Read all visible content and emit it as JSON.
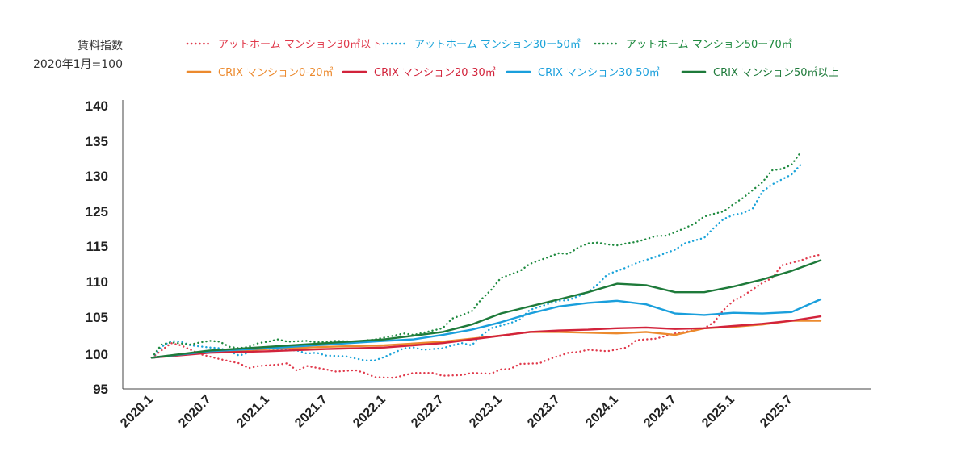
{
  "chart_data": {
    "type": "line",
    "ylabel": "賃料指数",
    "ylabel_sub": "2020年1月=100",
    "ylim": [
      95,
      140
    ],
    "yticks": [
      95,
      100,
      105,
      110,
      115,
      125,
      130,
      135,
      140
    ],
    "xticks": [
      "2020.1",
      "2020.7",
      "2021.1",
      "2021.7",
      "2022.1",
      "2022.7",
      "2023.1",
      "2023.7",
      "2024.1",
      "2024.7",
      "2025.1",
      "2025.7"
    ],
    "x_start": "2020.1",
    "n_months": 72,
    "grid": false,
    "legend_position": "top",
    "series": [
      {
        "name": "アットホーム マンション30㎡以下",
        "color": "#e0394b",
        "style": "dotted",
        "points": [
          [
            0,
            99.5
          ],
          [
            2,
            101.5
          ],
          [
            3,
            101.2
          ],
          [
            5,
            100.0
          ],
          [
            7,
            99.3
          ],
          [
            9,
            98.7
          ],
          [
            10,
            98.0
          ],
          [
            11,
            98.3
          ],
          [
            13,
            98.5
          ],
          [
            14,
            98.7
          ],
          [
            15,
            97.6
          ],
          [
            16,
            98.3
          ],
          [
            18,
            97.8
          ],
          [
            19,
            97.5
          ],
          [
            21,
            97.7
          ],
          [
            22,
            97.3
          ],
          [
            23,
            96.7
          ],
          [
            25,
            96.6
          ],
          [
            27,
            97.3
          ],
          [
            29,
            97.3
          ],
          [
            30,
            96.9
          ],
          [
            32,
            97.0
          ],
          [
            33,
            97.3
          ],
          [
            35,
            97.2
          ],
          [
            36,
            97.8
          ],
          [
            37,
            97.9
          ],
          [
            38,
            98.6
          ],
          [
            40,
            98.7
          ],
          [
            41,
            99.3
          ],
          [
            43,
            100.2
          ],
          [
            44,
            100.3
          ],
          [
            45,
            100.6
          ],
          [
            47,
            100.4
          ],
          [
            49,
            100.9
          ],
          [
            50,
            101.9
          ],
          [
            52,
            102.1
          ],
          [
            54,
            102.8
          ],
          [
            55,
            103.0
          ],
          [
            57,
            103.5
          ],
          [
            58,
            104.3
          ],
          [
            59,
            106.0
          ],
          [
            60,
            107.3
          ],
          [
            61,
            108.0
          ],
          [
            63,
            109.8
          ],
          [
            64,
            110.5
          ],
          [
            65,
            112.3
          ],
          [
            67,
            113.0
          ],
          [
            68,
            113.5
          ],
          [
            69,
            113.8
          ]
        ]
      },
      {
        "name": "アットホーム マンション30ー50㎡",
        "color": "#1aa3d9",
        "style": "dotted",
        "points": [
          [
            0,
            99.5
          ],
          [
            1,
            101.0
          ],
          [
            2,
            101.8
          ],
          [
            3,
            101.7
          ],
          [
            4,
            101.2
          ],
          [
            6,
            100.9
          ],
          [
            7,
            100.8
          ],
          [
            8,
            100.4
          ],
          [
            9,
            99.8
          ],
          [
            10,
            100.2
          ],
          [
            11,
            100.8
          ],
          [
            13,
            100.6
          ],
          [
            15,
            100.5
          ],
          [
            16,
            100.1
          ],
          [
            17,
            100.2
          ],
          [
            18,
            99.8
          ],
          [
            20,
            99.7
          ],
          [
            21,
            99.4
          ],
          [
            22,
            99.1
          ],
          [
            23,
            99.1
          ],
          [
            24,
            99.6
          ],
          [
            25,
            100.2
          ],
          [
            26,
            100.8
          ],
          [
            27,
            100.9
          ],
          [
            28,
            100.6
          ],
          [
            30,
            100.8
          ],
          [
            31,
            101.2
          ],
          [
            32,
            101.5
          ],
          [
            33,
            101.2
          ],
          [
            34,
            102.5
          ],
          [
            35,
            103.5
          ],
          [
            37,
            104.2
          ],
          [
            38,
            104.7
          ],
          [
            39,
            106.0
          ],
          [
            41,
            106.9
          ],
          [
            42,
            107.3
          ],
          [
            43,
            107.4
          ],
          [
            45,
            108.5
          ],
          [
            46,
            109.6
          ],
          [
            47,
            111.0
          ],
          [
            49,
            112.0
          ],
          [
            50,
            112.6
          ],
          [
            52,
            113.5
          ],
          [
            53,
            114.0
          ],
          [
            54,
            114.5
          ],
          [
            55,
            115.8
          ],
          [
            57,
            117.4
          ],
          [
            58,
            120.3
          ],
          [
            59,
            122.8
          ],
          [
            60,
            124.0
          ],
          [
            61,
            124.5
          ],
          [
            62,
            125.4
          ],
          [
            63,
            127.8
          ],
          [
            64,
            128.8
          ],
          [
            65,
            129.5
          ],
          [
            66,
            130.2
          ],
          [
            67,
            131.7
          ]
        ]
      },
      {
        "name": "アットホーム マンション50ー70㎡",
        "color": "#1e8a3f",
        "style": "dotted",
        "points": [
          [
            0,
            99.5
          ],
          [
            1,
            101.3
          ],
          [
            2,
            101.6
          ],
          [
            4,
            101.3
          ],
          [
            5,
            101.6
          ],
          [
            6,
            101.8
          ],
          [
            7,
            101.7
          ],
          [
            8,
            101.0
          ],
          [
            9,
            100.8
          ],
          [
            10,
            101.0
          ],
          [
            11,
            101.5
          ],
          [
            12,
            101.7
          ],
          [
            13,
            102.0
          ],
          [
            14,
            101.7
          ],
          [
            16,
            101.8
          ],
          [
            17,
            101.6
          ],
          [
            19,
            101.8
          ],
          [
            21,
            101.7
          ],
          [
            23,
            102.0
          ],
          [
            25,
            102.5
          ],
          [
            26,
            102.8
          ],
          [
            27,
            102.6
          ],
          [
            29,
            103.2
          ],
          [
            30,
            103.5
          ],
          [
            31,
            104.8
          ],
          [
            32,
            105.3
          ],
          [
            33,
            105.8
          ],
          [
            34,
            107.5
          ],
          [
            35,
            108.8
          ],
          [
            36,
            110.5
          ],
          [
            37,
            111.0
          ],
          [
            38,
            111.5
          ],
          [
            39,
            112.5
          ],
          [
            40,
            113.0
          ],
          [
            41,
            113.5
          ],
          [
            42,
            114.0
          ],
          [
            43,
            113.9
          ],
          [
            44,
            114.8
          ],
          [
            45,
            115.8
          ],
          [
            46,
            116.0
          ],
          [
            47,
            115.5
          ],
          [
            48,
            115.2
          ],
          [
            49,
            115.8
          ],
          [
            50,
            116.2
          ],
          [
            51,
            117.0
          ],
          [
            52,
            117.9
          ],
          [
            53,
            118.0
          ],
          [
            54,
            119.0
          ],
          [
            55,
            120.2
          ],
          [
            56,
            121.5
          ],
          [
            57,
            123.5
          ],
          [
            58,
            124.3
          ],
          [
            59,
            125.0
          ],
          [
            60,
            126.0
          ],
          [
            61,
            126.9
          ],
          [
            62,
            128.0
          ],
          [
            63,
            129.1
          ],
          [
            64,
            130.8
          ],
          [
            65,
            131.0
          ],
          [
            66,
            131.6
          ],
          [
            67,
            133.5
          ]
        ]
      },
      {
        "name": "CRIX マンション0-20㎡",
        "color": "#ec8a2e",
        "style": "solid",
        "points": [
          [
            0,
            99.5
          ],
          [
            6,
            100.3
          ],
          [
            12,
            100.7
          ],
          [
            18,
            101.0
          ],
          [
            24,
            101.2
          ],
          [
            30,
            101.7
          ],
          [
            36,
            102.5
          ],
          [
            39,
            103.0
          ],
          [
            42,
            103.0
          ],
          [
            45,
            102.9
          ],
          [
            48,
            102.8
          ],
          [
            51,
            103.0
          ],
          [
            54,
            102.6
          ],
          [
            57,
            103.5
          ],
          [
            60,
            103.7
          ],
          [
            63,
            104.0
          ],
          [
            66,
            104.5
          ],
          [
            69,
            104.5
          ]
        ]
      },
      {
        "name": "CRIX マンション20-30㎡",
        "color": "#d2233b",
        "style": "solid",
        "points": [
          [
            0,
            99.5
          ],
          [
            6,
            100.2
          ],
          [
            12,
            100.4
          ],
          [
            18,
            100.7
          ],
          [
            24,
            100.9
          ],
          [
            30,
            101.5
          ],
          [
            36,
            102.5
          ],
          [
            39,
            103.0
          ],
          [
            42,
            103.2
          ],
          [
            45,
            103.3
          ],
          [
            48,
            103.5
          ],
          [
            51,
            103.6
          ],
          [
            54,
            103.4
          ],
          [
            57,
            103.5
          ],
          [
            60,
            103.8
          ],
          [
            63,
            104.1
          ],
          [
            66,
            104.5
          ],
          [
            69,
            105.1
          ]
        ]
      },
      {
        "name": "CRIX マンション30-50㎡",
        "color": "#1a9fdc",
        "style": "solid",
        "points": [
          [
            0,
            99.5
          ],
          [
            6,
            100.4
          ],
          [
            12,
            100.8
          ],
          [
            18,
            101.3
          ],
          [
            24,
            101.8
          ],
          [
            27,
            102.0
          ],
          [
            30,
            102.6
          ],
          [
            33,
            103.3
          ],
          [
            36,
            104.3
          ],
          [
            39,
            105.5
          ],
          [
            42,
            106.5
          ],
          [
            45,
            107.0
          ],
          [
            48,
            107.3
          ],
          [
            51,
            106.8
          ],
          [
            54,
            105.5
          ],
          [
            57,
            105.3
          ],
          [
            60,
            105.6
          ],
          [
            63,
            105.5
          ],
          [
            66,
            105.7
          ],
          [
            69,
            107.5
          ]
        ]
      },
      {
        "name": "CRIX マンション50㎡以上",
        "color": "#1e7a3a",
        "style": "solid",
        "points": [
          [
            0,
            99.5
          ],
          [
            6,
            100.5
          ],
          [
            12,
            101.0
          ],
          [
            18,
            101.5
          ],
          [
            24,
            102.0
          ],
          [
            30,
            103.0
          ],
          [
            33,
            104.0
          ],
          [
            36,
            105.5
          ],
          [
            39,
            106.5
          ],
          [
            42,
            107.5
          ],
          [
            45,
            108.5
          ],
          [
            48,
            109.7
          ],
          [
            51,
            109.5
          ],
          [
            54,
            108.5
          ],
          [
            57,
            108.5
          ],
          [
            60,
            109.3
          ],
          [
            63,
            110.3
          ],
          [
            66,
            111.5
          ],
          [
            69,
            113.0
          ]
        ]
      }
    ]
  }
}
